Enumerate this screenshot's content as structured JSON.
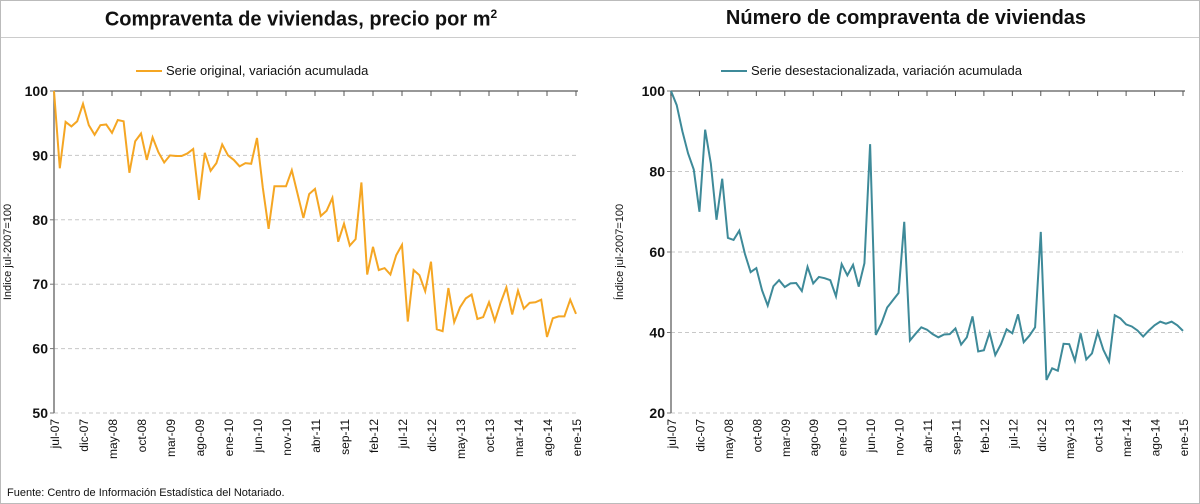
{
  "footer": "Fuente: Centro de Información Estadística del Notariado.",
  "chart_data": [
    {
      "type": "line",
      "title": "Compraventa de viviendas, precio por m",
      "title_superscript": "2",
      "ylabel": "Indice jul-2007=100",
      "ylim": [
        50,
        100
      ],
      "yticks": [
        50,
        60,
        70,
        80,
        90,
        100
      ],
      "grid": true,
      "legend": "top-center",
      "tick_labels": [
        "jul-07",
        "dic-07",
        "may-08",
        "oct-08",
        "mar-09",
        "ago-09",
        "ene-10",
        "jun-10",
        "nov-10",
        "abr-11",
        "sep-11",
        "feb-12",
        "jul-12",
        "dic-12",
        "may-13",
        "oct-13",
        "mar-14",
        "ago-14",
        "ene-15"
      ],
      "series": [
        {
          "name": "Serie original, variación acumulada",
          "color": "#F5A623",
          "values": [
            100,
            88,
            95.2,
            94.5,
            95.3,
            98,
            94.7,
            93.2,
            94.7,
            94.8,
            93.5,
            95.5,
            95.3,
            87.3,
            92.2,
            93.4,
            89.3,
            92.8,
            90.5,
            88.9,
            90,
            89.9,
            89.9,
            90.3,
            91,
            83.1,
            90.4,
            87.6,
            88.8,
            91.7,
            90,
            89.3,
            88.3,
            88.8,
            88.7,
            92.7,
            85,
            78.6,
            85.2,
            85.2,
            85.2,
            87.7,
            84,
            80.3,
            84,
            84.8,
            80.6,
            81.4,
            83.4,
            76.6,
            79.4,
            76,
            77,
            85.8,
            71.5,
            75.8,
            72.2,
            72.5,
            71.5,
            74.5,
            76.1,
            64.2,
            72.2,
            71.4,
            68.9,
            73.5,
            63,
            62.7,
            69.4,
            64.1,
            66.4,
            67.8,
            68.4,
            64.6,
            64.9,
            67.2,
            64.3,
            67.1,
            69.5,
            65.3,
            69,
            66.2,
            67.1,
            67.2,
            67.6,
            61.8,
            64.7,
            65,
            65,
            67.6,
            65.4
          ]
        }
      ]
    },
    {
      "type": "line",
      "title": "Número de compraventa de viviendas",
      "ylabel": "Índice jul-2007=100",
      "ylim": [
        20,
        100
      ],
      "yticks": [
        20,
        40,
        60,
        80,
        100
      ],
      "grid": true,
      "legend": "top-center",
      "tick_labels": [
        "jul-07",
        "dic-07",
        "may-08",
        "oct-08",
        "mar-09",
        "ago-09",
        "ene-10",
        "jun-10",
        "nov-10",
        "abr-11",
        "sep-11",
        "feb-12",
        "jul-12",
        "dic-12",
        "may-13",
        "oct-13",
        "mar-14",
        "ago-14",
        "ene-15"
      ],
      "series": [
        {
          "name": "Serie desestacionalizada, variación acumulada",
          "color": "#3E8A99",
          "values": [
            100,
            96.5,
            90,
            84.5,
            80.5,
            70,
            90.4,
            82,
            68,
            78.2,
            63.5,
            63,
            65.3,
            59.5,
            55,
            56,
            50.5,
            46.7,
            51.5,
            53,
            51.3,
            52.2,
            52.3,
            50.3,
            56.3,
            52.2,
            53.8,
            53.5,
            53,
            49,
            57,
            54.2,
            56.8,
            51.4,
            57.2,
            86.8,
            39.4,
            42.3,
            46.2,
            48,
            49.8,
            67.5,
            38,
            39.7,
            41.3,
            40.7,
            39.6,
            38.8,
            39.5,
            39.6,
            41,
            37,
            38.8,
            44,
            35.3,
            35.6,
            40,
            34.4,
            37.1,
            40.8,
            39.8,
            44.5,
            37.6,
            39.2,
            41.3,
            65,
            28.2,
            31.1,
            30.5,
            37.2,
            37.1,
            33,
            39.8,
            33.3,
            34.8,
            40.1,
            35.7,
            32.8,
            44.3,
            43.5,
            42,
            41.5,
            40.5,
            39,
            40.5,
            41.8,
            42.7,
            42.2,
            42.7,
            41.8,
            40.4
          ]
        }
      ]
    }
  ]
}
